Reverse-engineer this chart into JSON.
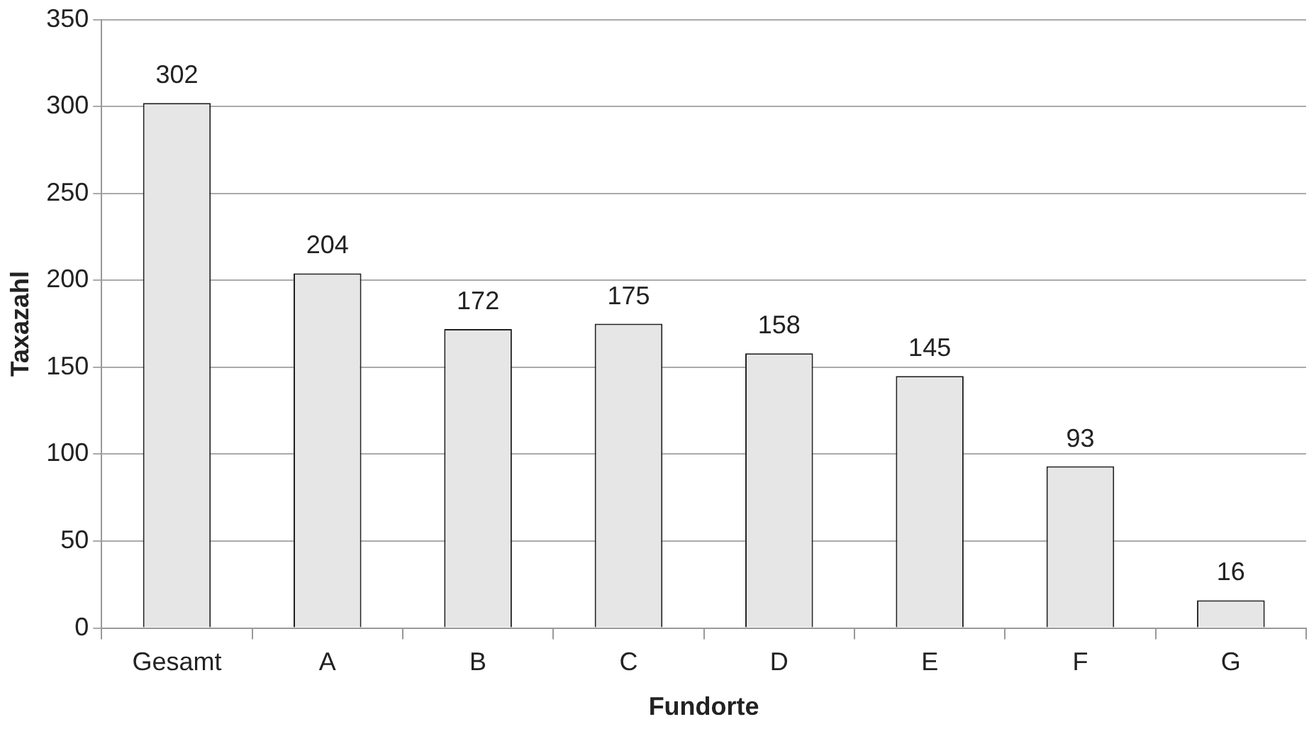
{
  "chart_data": {
    "type": "bar",
    "xlabel": "Fundorte",
    "ylabel": "Taxazahl",
    "categories": [
      "Gesamt",
      "A",
      "B",
      "C",
      "D",
      "E",
      "F",
      "G"
    ],
    "values": [
      302,
      204,
      172,
      175,
      158,
      145,
      93,
      16
    ],
    "color": "#e6e6e6",
    "ylim": [
      0,
      350
    ],
    "yticks": [
      0,
      50,
      100,
      150,
      200,
      250,
      300,
      350
    ],
    "grid": "y",
    "data_labels": true
  }
}
